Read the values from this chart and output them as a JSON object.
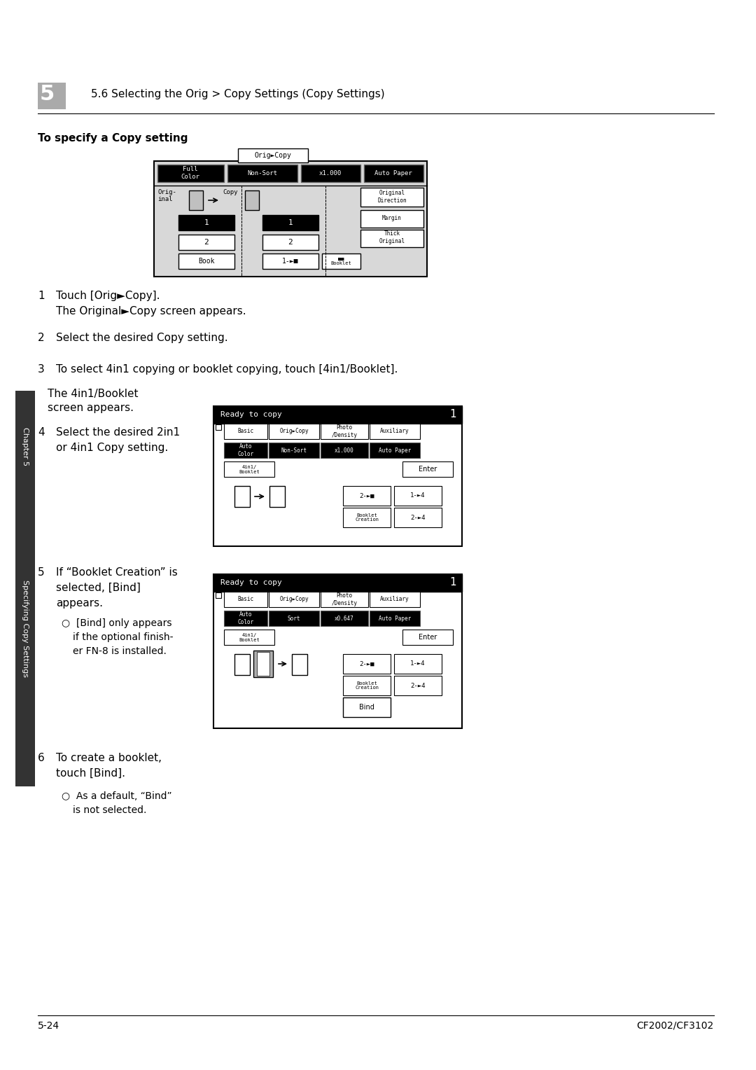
{
  "bg_color": "#ffffff",
  "chapter_num": "5",
  "header_text": "5.6 Selecting the Orig > Copy Settings (Copy Settings)",
  "section_title": "To specify a Copy setting",
  "step1_num": "1",
  "step1_text": "Touch [Orig►Copy].",
  "step1_sub": "The Original►Copy screen appears.",
  "step2_num": "2",
  "step2_text": "Select the desired Copy setting.",
  "step3_num": "3",
  "step3_text": "To select 4in1 copying or booklet copying, touch [4in1/Booklet].",
  "step3_sub1": "The 4in1/Booklet",
  "step3_sub2": "screen appears.",
  "step4_num": "4",
  "step4_text": "Select the desired 2in1",
  "step4_text2": "or 4in1 Copy setting.",
  "step5_num": "5",
  "step5_text1": "If “Booklet Creation” is",
  "step5_text2": "selected, [Bind]",
  "step5_text3": "appears.",
  "step5_bullet1": "[Bind] only appears",
  "step5_bullet2": "if the optional finish-",
  "step5_bullet3": "er FN-8 is installed.",
  "step6_num": "6",
  "step6_text1": "To create a booklet,",
  "step6_text2": "touch [Bind].",
  "step6_bullet1": "As a default, “Bind”",
  "step6_bullet2": "is not selected.",
  "footer_left": "5-24",
  "footer_right": "CF2002/CF3102",
  "sidebar_text": "Specifying Copy Settings",
  "sidebar_chapter": "Chapter 5"
}
